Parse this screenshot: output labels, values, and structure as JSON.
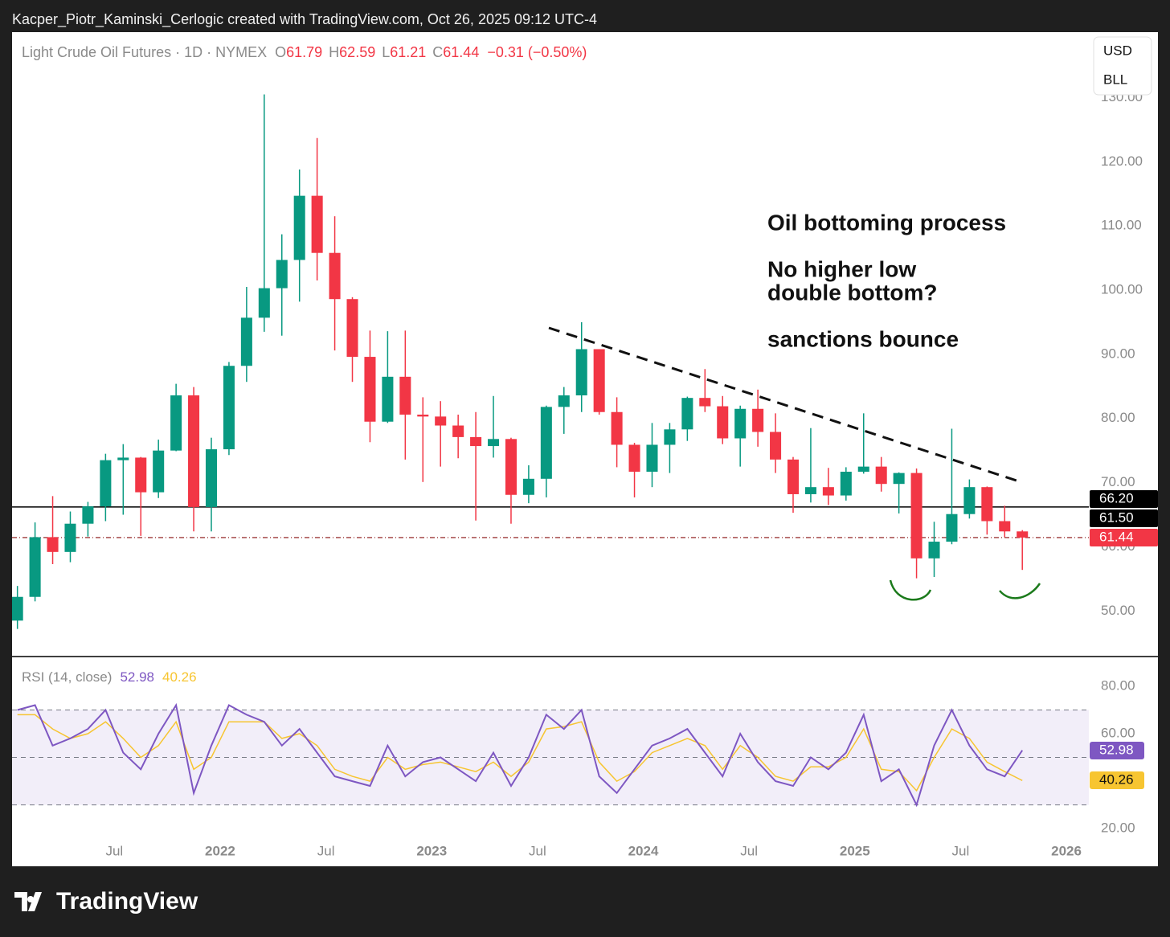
{
  "header": {
    "text": "Kacper_Piotr_Kaminski_Cerlogic created with TradingView.com, Oct 26, 2025 09:12 UTC-4"
  },
  "footer": {
    "brand": "TradingView"
  },
  "currency_box": [
    "USD",
    "BLL"
  ],
  "annotations": [
    "Oil bottoming process",
    "No higher low",
    "double bottom?",
    "sanctions bounce"
  ],
  "chart_data": [
    {
      "type": "candlestick",
      "legend": {
        "title": "Light Crude Oil Futures · 1D · NYMEX",
        "items": [
          {
            "label": "O",
            "value": 61.79
          },
          {
            "label": "H",
            "value": 62.59
          },
          {
            "label": "L",
            "value": 61.21
          },
          {
            "label": "C",
            "value": 61.44
          }
        ],
        "change": "−0.31 (−0.50%)"
      },
      "up_color": "#089981",
      "down_color": "#f23645",
      "x": [
        "2021-01",
        "2021-02",
        "2021-03",
        "2021-04",
        "2021-05",
        "2021-06",
        "2021-07",
        "2021-08",
        "2021-09",
        "2021-10",
        "2021-11",
        "2021-12",
        "2022-01",
        "2022-02",
        "2022-03",
        "2022-04",
        "2022-05",
        "2022-06",
        "2022-07",
        "2022-08",
        "2022-09",
        "2022-10",
        "2022-11",
        "2022-12",
        "2023-01",
        "2023-02",
        "2023-03",
        "2023-04",
        "2023-05",
        "2023-06",
        "2023-07",
        "2023-08",
        "2023-09",
        "2023-10",
        "2023-11",
        "2023-12",
        "2024-01",
        "2024-02",
        "2024-03",
        "2024-04",
        "2024-05",
        "2024-06",
        "2024-07",
        "2024-08",
        "2024-09",
        "2024-10",
        "2024-11",
        "2024-12",
        "2025-01",
        "2025-02",
        "2025-03",
        "2025-04",
        "2025-05",
        "2025-06",
        "2025-07",
        "2025-08",
        "2025-09",
        "2025-10"
      ],
      "open": [
        48.5,
        52.2,
        61.5,
        59.2,
        63.6,
        66.3,
        73.5,
        73.9,
        68.5,
        75.0,
        83.6,
        66.2,
        75.2,
        88.2,
        95.7,
        100.3,
        104.7,
        114.7,
        105.8,
        98.6,
        89.6,
        79.5,
        86.5,
        80.6,
        80.3,
        78.9,
        77.1,
        75.7,
        76.8,
        68.1,
        70.6,
        81.8,
        83.6,
        90.8,
        81.0,
        75.9,
        71.7,
        75.9,
        78.3,
        83.2,
        81.9,
        76.9,
        81.5,
        77.9,
        73.6,
        68.2,
        69.3,
        68.0,
        71.7,
        72.5,
        69.8,
        71.5,
        58.2,
        60.8,
        65.1,
        69.3,
        64.0,
        62.4
      ],
      "high": [
        53.9,
        63.8,
        67.9,
        65.5,
        67.0,
        74.5,
        76.0,
        74.0,
        76.7,
        85.4,
        84.9,
        77.0,
        88.8,
        100.5,
        130.5,
        108.7,
        118.8,
        123.7,
        111.5,
        98.9,
        93.7,
        93.6,
        93.7,
        83.3,
        82.7,
        80.6,
        81.0,
        83.5,
        77.0,
        72.7,
        82.0,
        84.9,
        95.0,
        90.8,
        83.3,
        76.2,
        79.3,
        79.3,
        83.4,
        87.7,
        83.5,
        82.0,
        84.5,
        80.8,
        74.0,
        78.5,
        72.3,
        72.4,
        80.8,
        74.0,
        71.6,
        72.2,
        63.9,
        78.4,
        70.5,
        69.4,
        66.4,
        62.6
      ],
      "low": [
        47.2,
        51.5,
        57.3,
        57.6,
        61.6,
        64.0,
        65.0,
        61.7,
        67.6,
        74.9,
        62.4,
        62.4,
        74.3,
        85.7,
        93.5,
        92.9,
        98.2,
        101.5,
        90.6,
        85.7,
        76.3,
        79.3,
        73.6,
        70.1,
        72.5,
        73.8,
        64.1,
        73.9,
        63.6,
        66.8,
        67.7,
        77.6,
        81.0,
        80.6,
        72.4,
        67.7,
        69.3,
        71.5,
        76.5,
        81.0,
        76.0,
        72.5,
        75.6,
        71.5,
        65.3,
        66.9,
        66.5,
        67.2,
        71.4,
        68.6,
        65.2,
        55.1,
        55.3,
        60.4,
        64.4,
        61.9,
        61.5,
        56.4
      ],
      "close": [
        52.2,
        61.5,
        59.2,
        63.6,
        66.3,
        73.5,
        73.9,
        68.5,
        75.0,
        83.6,
        66.2,
        75.2,
        88.2,
        95.7,
        100.3,
        104.7,
        114.7,
        105.8,
        98.6,
        89.6,
        79.5,
        86.5,
        80.6,
        80.3,
        78.9,
        77.1,
        75.7,
        76.8,
        68.1,
        70.6,
        81.8,
        83.6,
        90.8,
        81.0,
        75.9,
        71.7,
        75.9,
        78.3,
        83.2,
        81.9,
        76.9,
        81.5,
        77.9,
        73.6,
        68.2,
        69.3,
        68.0,
        71.7,
        72.5,
        69.8,
        71.5,
        58.2,
        60.8,
        65.1,
        69.3,
        64.0,
        62.4,
        61.44
      ],
      "xlim": [
        "2021-01",
        "2026-02"
      ],
      "ylim": [
        42.9,
        140.2
      ],
      "yticks": [
        {
          "value": 50,
          "label": "50.00"
        },
        {
          "value": 60,
          "label": "60.00"
        },
        {
          "value": 70,
          "label": "70.00"
        },
        {
          "value": 80,
          "label": "80.00"
        },
        {
          "value": 90,
          "label": "90.00"
        },
        {
          "value": 100,
          "label": "100.00"
        },
        {
          "value": 110,
          "label": "110.00"
        },
        {
          "value": 120,
          "label": "120.00"
        },
        {
          "value": 130,
          "label": "130.00"
        }
      ],
      "levels": [
        {
          "value": 66.2,
          "style": "solid",
          "color": "#000000"
        },
        {
          "value": 61.44,
          "style": "dashdot",
          "color": "#880e0e"
        }
      ],
      "price_labels": [
        {
          "value": 66.2,
          "label": "66.20",
          "color": "#000000"
        },
        {
          "value": 61.5,
          "label": "61.50",
          "color": "#000000"
        },
        {
          "value": 61.44,
          "label": "61.44",
          "color": "#f23645"
        }
      ]
    },
    {
      "type": "line",
      "legend": {
        "title": "RSI (14, close)"
      },
      "x": [
        "2021-01",
        "2021-02",
        "2021-03",
        "2021-04",
        "2021-05",
        "2021-06",
        "2021-07",
        "2021-08",
        "2021-09",
        "2021-10",
        "2021-11",
        "2021-12",
        "2022-01",
        "2022-02",
        "2022-03",
        "2022-04",
        "2022-05",
        "2022-06",
        "2022-07",
        "2022-08",
        "2022-09",
        "2022-10",
        "2022-11",
        "2022-12",
        "2023-01",
        "2023-02",
        "2023-03",
        "2023-04",
        "2023-05",
        "2023-06",
        "2023-07",
        "2023-08",
        "2023-09",
        "2023-10",
        "2023-11",
        "2023-12",
        "2024-01",
        "2024-02",
        "2024-03",
        "2024-04",
        "2024-05",
        "2024-06",
        "2024-07",
        "2024-08",
        "2024-09",
        "2024-10",
        "2024-11",
        "2024-12",
        "2025-01",
        "2025-02",
        "2025-03",
        "2025-04",
        "2025-05",
        "2025-06",
        "2025-07",
        "2025-08",
        "2025-09",
        "2025-10"
      ],
      "series": [
        {
          "color": "#7e57c2",
          "values": [
            70,
            72,
            55,
            58,
            62,
            70,
            52,
            45,
            60,
            72,
            35,
            55,
            72,
            68,
            65,
            55,
            62,
            52,
            42,
            40,
            38,
            55,
            42,
            48,
            50,
            45,
            40,
            52,
            38,
            50,
            68,
            62,
            70,
            42,
            35,
            45,
            55,
            58,
            62,
            52,
            42,
            60,
            48,
            40,
            38,
            50,
            45,
            52,
            68,
            40,
            45,
            30,
            55,
            70,
            55,
            45,
            42,
            52.98
          ]
        },
        {
          "color": "#f7c531",
          "values": [
            68,
            68,
            62,
            58,
            60,
            65,
            58,
            50,
            55,
            65,
            45,
            50,
            65,
            65,
            65,
            58,
            60,
            55,
            45,
            42,
            40,
            50,
            45,
            47,
            48,
            46,
            44,
            48,
            42,
            48,
            62,
            63,
            65,
            48,
            40,
            44,
            52,
            55,
            58,
            55,
            45,
            55,
            50,
            42,
            40,
            46,
            46,
            50,
            62,
            45,
            44,
            36,
            50,
            62,
            58,
            48,
            44,
            40.26
          ]
        }
      ],
      "bands": [
        30,
        50,
        70
      ],
      "xlim": [
        "2021-01",
        "2026-02"
      ],
      "ylim": [
        15.3,
        92.5
      ],
      "yticks": [
        {
          "value": 20,
          "label": "20.00"
        },
        {
          "value": 60,
          "label": "60.00"
        },
        {
          "value": 80,
          "label": "80.00"
        }
      ],
      "xticks": [
        {
          "value": "2021-07",
          "label": "Jul"
        },
        {
          "value": "2022-01",
          "label": "2022"
        },
        {
          "value": "2022-07",
          "label": "Jul"
        },
        {
          "value": "2023-01",
          "label": "2023"
        },
        {
          "value": "2023-07",
          "label": "Jul"
        },
        {
          "value": "2024-01",
          "label": "2024"
        },
        {
          "value": "2024-07",
          "label": "Jul"
        },
        {
          "value": "2025-01",
          "label": "2025"
        },
        {
          "value": "2025-07",
          "label": "Jul"
        },
        {
          "value": "2026-01",
          "label": "2026"
        }
      ]
    }
  ]
}
